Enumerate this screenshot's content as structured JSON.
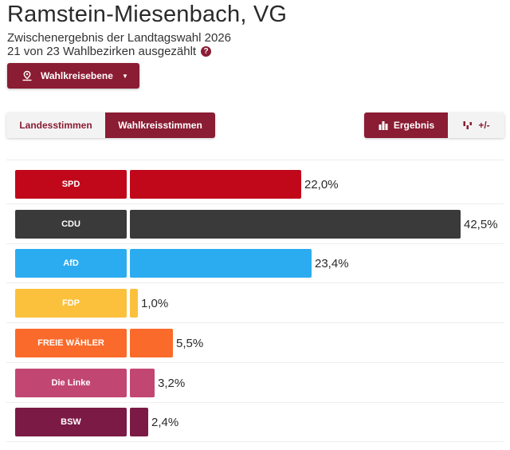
{
  "header": {
    "title": "Ramstein-Miesenbach, VG",
    "subtitle": "Zwischenergebnis der Landtagswahl 2026",
    "progress": "21 von 23 Wahlbezirken ausgezählt",
    "help_icon": "?"
  },
  "level_button": {
    "label": "Wahlkreisebene",
    "icon": "map-marker-icon",
    "caret": "▼"
  },
  "vote_tabs": [
    {
      "label": "Landesstimmen",
      "active": false
    },
    {
      "label": "Wahlkreisstimmen",
      "active": true
    }
  ],
  "view_tabs": [
    {
      "label": "Ergebnis",
      "icon": "bar-chart-icon",
      "active": true
    },
    {
      "label": "+/-",
      "icon": "diff-chart-icon",
      "active": false
    }
  ],
  "colors": {
    "accent": "#8a1c33"
  },
  "chart_data": {
    "type": "bar",
    "orientation": "horizontal",
    "unit": "%",
    "categories": [
      "SPD",
      "CDU",
      "AfD",
      "FDP",
      "FREIE WÄHLER",
      "Die Linke",
      "BSW"
    ],
    "values": [
      22.0,
      42.5,
      23.4,
      1.0,
      5.5,
      3.2,
      2.4
    ],
    "value_labels": [
      "22,0%",
      "42,5%",
      "23,4%",
      "1,0%",
      "5,5%",
      "3,2%",
      "2,4%"
    ],
    "colors": [
      "#c0081a",
      "#3a3a3a",
      "#2cacf0",
      "#fbc13c",
      "#fa6a2a",
      "#c24672",
      "#7b1a45"
    ],
    "xlim": [
      0,
      42.5
    ]
  }
}
